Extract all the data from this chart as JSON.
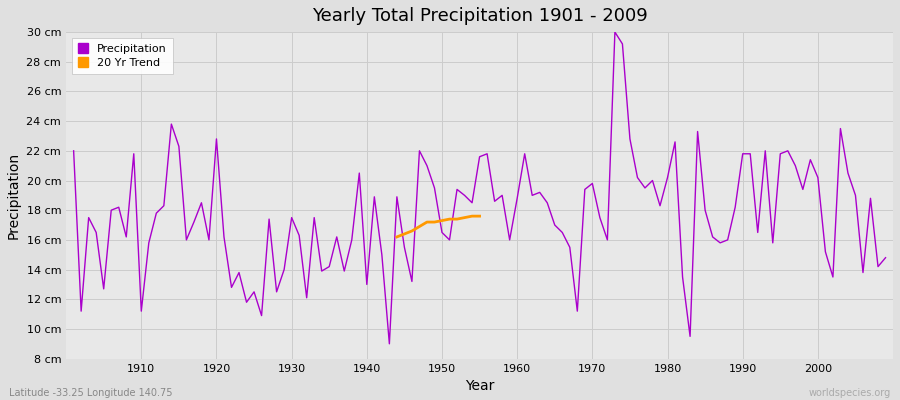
{
  "title": "Yearly Total Precipitation 1901 - 2009",
  "xlabel": "Year",
  "ylabel": "Precipitation",
  "lat_lon_label": "Latitude -33.25 Longitude 140.75",
  "watermark": "worldspecies.org",
  "fig_bg_color": "#e0e0e0",
  "plot_bg_color": "#e8e8e8",
  "grid_color": "#cccccc",
  "precip_color": "#aa00cc",
  "trend_color": "#ff9900",
  "ylim": [
    8,
    30
  ],
  "ytick_labels": [
    "8 cm",
    "10 cm",
    "12 cm",
    "14 cm",
    "16 cm",
    "18 cm",
    "20 cm",
    "22 cm",
    "24 cm",
    "26 cm",
    "28 cm",
    "30 cm"
  ],
  "ytick_values": [
    8,
    10,
    12,
    14,
    16,
    18,
    20,
    22,
    24,
    26,
    28,
    30
  ],
  "years": [
    1901,
    1902,
    1903,
    1904,
    1905,
    1906,
    1907,
    1908,
    1909,
    1910,
    1911,
    1912,
    1913,
    1914,
    1915,
    1916,
    1917,
    1918,
    1919,
    1920,
    1921,
    1922,
    1923,
    1924,
    1925,
    1926,
    1927,
    1928,
    1929,
    1930,
    1931,
    1932,
    1933,
    1934,
    1935,
    1936,
    1937,
    1938,
    1939,
    1940,
    1941,
    1942,
    1943,
    1944,
    1945,
    1946,
    1947,
    1948,
    1949,
    1950,
    1951,
    1952,
    1953,
    1954,
    1955,
    1956,
    1957,
    1958,
    1959,
    1960,
    1961,
    1962,
    1963,
    1964,
    1965,
    1966,
    1967,
    1968,
    1969,
    1970,
    1971,
    1972,
    1973,
    1974,
    1975,
    1976,
    1977,
    1978,
    1979,
    1980,
    1981,
    1982,
    1983,
    1984,
    1985,
    1986,
    1987,
    1988,
    1989,
    1990,
    1991,
    1992,
    1993,
    1994,
    1995,
    1996,
    1997,
    1998,
    1999,
    2000,
    2001,
    2002,
    2003,
    2004,
    2005,
    2006,
    2007,
    2008,
    2009
  ],
  "precip": [
    22.0,
    11.2,
    17.5,
    16.5,
    12.7,
    18.0,
    18.2,
    16.2,
    21.8,
    11.2,
    15.8,
    17.8,
    18.3,
    23.8,
    22.3,
    16.0,
    17.2,
    18.5,
    16.0,
    22.8,
    16.2,
    12.8,
    13.8,
    11.8,
    12.5,
    10.9,
    17.4,
    12.5,
    14.0,
    17.5,
    16.3,
    12.1,
    17.5,
    13.9,
    14.2,
    16.2,
    13.9,
    16.0,
    20.5,
    13.0,
    18.9,
    15.0,
    9.0,
    18.9,
    15.5,
    13.2,
    22.0,
    21.0,
    19.5,
    16.5,
    16.0,
    19.4,
    19.0,
    18.5,
    21.6,
    21.8,
    18.6,
    19.0,
    16.0,
    18.8,
    21.8,
    19.0,
    19.2,
    18.5,
    17.0,
    16.5,
    15.5,
    11.2,
    19.4,
    19.8,
    17.5,
    16.0,
    30.0,
    29.2,
    22.8,
    20.2,
    19.5,
    20.0,
    18.3,
    20.2,
    22.6,
    13.5,
    9.5,
    23.3,
    18.0,
    16.2,
    15.8,
    16.0,
    18.2,
    21.8,
    21.8,
    16.5,
    22.0,
    15.8,
    21.8,
    22.0,
    21.0,
    19.4,
    21.4,
    20.2,
    15.2,
    13.5,
    23.5,
    20.5,
    19.0,
    13.8,
    18.8,
    14.2,
    14.8
  ],
  "trend_years": [
    1944,
    1945,
    1946,
    1947,
    1948,
    1949,
    1950,
    1951,
    1952,
    1953,
    1954,
    1955
  ],
  "trend_values": [
    16.2,
    16.4,
    16.6,
    16.9,
    17.2,
    17.2,
    17.3,
    17.4,
    17.4,
    17.5,
    17.6,
    17.6
  ],
  "xlim_start": 1900,
  "xlim_end": 2010
}
